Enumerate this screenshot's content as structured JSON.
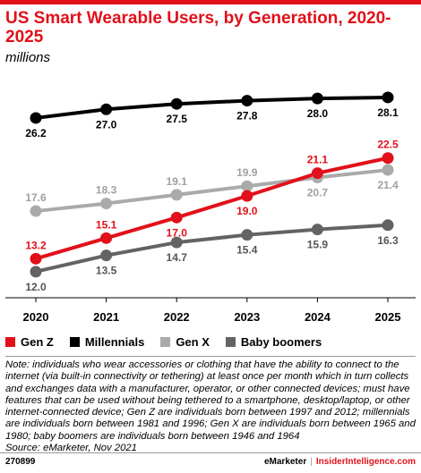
{
  "header": {
    "title": "US Smart Wearable Users, by Generation, 2020-2025",
    "subtitle": "millions"
  },
  "colors": {
    "accent": "#e1101a",
    "gen_z": "#e1101a",
    "millennials": "#000000",
    "gen_x": "#aaaaaa",
    "baby_boomers": "#636363"
  },
  "chart_data": {
    "type": "line",
    "x": [
      "2020",
      "2021",
      "2022",
      "2023",
      "2024",
      "2025"
    ],
    "series": [
      {
        "name": "Gen Z",
        "values": [
          13.2,
          15.1,
          17.0,
          19.0,
          21.1,
          22.5
        ]
      },
      {
        "name": "Millennials",
        "values": [
          26.2,
          27.0,
          27.5,
          27.8,
          28.0,
          28.1
        ]
      },
      {
        "name": "Gen X",
        "values": [
          17.6,
          18.3,
          19.1,
          19.9,
          20.7,
          21.4
        ]
      },
      {
        "name": "Baby boomers",
        "values": [
          12.0,
          13.5,
          14.7,
          15.4,
          15.9,
          16.3
        ]
      }
    ],
    "ylim": [
      10.5,
      29.5
    ],
    "grid": false,
    "legend": "bottom"
  },
  "legend": {
    "items": [
      "Gen Z",
      "Millennials",
      "Gen X",
      "Baby boomers"
    ]
  },
  "note": "Note: individuals who wear accessories or clothing that have the ability to connect to the internet (via built-in connectivity or tethering) at least once per month which in turn collects and exchanges data with a manufacturer, operator, or other connected devices; must have features that can be used without being tethered to a smartphone, desktop/laptop, or other internet-connected device; Gen Z are individuals born between 1997 and 2012; millennials are individuals born between 1981 and 1996; Gen X are individuals born between 1965 and 1980; baby boomers are individuals born between 1946 and 1964",
  "source": "Source: eMarketer, Nov 2021",
  "footer": {
    "id": "270899",
    "brand1": "eMarketer",
    "separator": "|",
    "brand2": "InsiderIntelligence.com"
  }
}
